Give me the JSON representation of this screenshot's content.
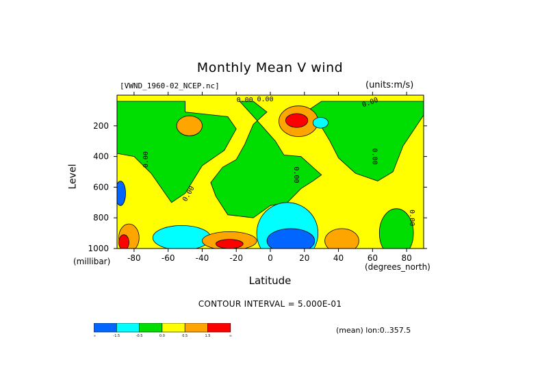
{
  "header": {
    "title": "Monthly Mean V wind",
    "dataset": "[VWND_1960-02_NCEP.nc]",
    "units": "(units:m/s)"
  },
  "footer": {
    "contour_interval": "CONTOUR INTERVAL = 5.000E-01",
    "mean_label": "(mean) lon:0..357.5"
  },
  "chart_data": {
    "type": "heatmap",
    "title": "Monthly Mean V wind",
    "xlabel": "Latitude",
    "x_unit_label": "(degrees_north)",
    "ylabel": "Level",
    "y_unit_label": "(millibar)",
    "xlim": [
      -90,
      90
    ],
    "ylim": [
      1000,
      0
    ],
    "x_ticks": [
      -80,
      -60,
      -40,
      -20,
      0,
      20,
      40,
      60,
      80
    ],
    "x_tick_labels": [
      "-80",
      "-60",
      "-40",
      "-20",
      "0",
      "20",
      "40",
      "60",
      "80"
    ],
    "y_ticks": [
      200,
      400,
      600,
      800,
      1000
    ],
    "y_tick_labels": [
      "200",
      "400",
      "600",
      "800",
      "1000"
    ],
    "contour_labels": [
      "0.00",
      "0.00",
      "0.00",
      "0.00",
      "0.00",
      "0.00",
      "0.00",
      "0.00"
    ],
    "contour_interval": 0.5,
    "colorbar": {
      "colors": [
        "#0066ff",
        "#00ffff",
        "#00dd00",
        "#ffff00",
        "#ffa500",
        "#ff0000"
      ],
      "labels": [
        "-∞",
        "-1.5",
        "-0.5",
        "0.0",
        "0.5",
        "1.5",
        "∞"
      ]
    },
    "regions": [
      {
        "level": "yellow",
        "lat": [
          -90,
          90
        ],
        "p": [
          40,
          1000
        ]
      },
      {
        "level": "green",
        "desc": "southern subtropics",
        "poly": [
          [
            -75,
            40
          ],
          [
            -50,
            40
          ],
          [
            -50,
            110
          ],
          [
            -25,
            140
          ],
          [
            -20,
            220
          ],
          [
            -27,
            360
          ],
          [
            -40,
            460
          ],
          [
            -50,
            640
          ],
          [
            -58,
            700
          ],
          [
            -70,
            510
          ],
          [
            -80,
            400
          ],
          [
            -90,
            380
          ],
          [
            -90,
            40
          ]
        ]
      },
      {
        "level": "green",
        "desc": "central column",
        "poly": [
          [
            -10,
            40
          ],
          [
            -2,
            110
          ],
          [
            -10,
            190
          ],
          [
            -15,
            320
          ],
          [
            -20,
            420
          ],
          [
            -28,
            470
          ],
          [
            -35,
            570
          ],
          [
            -32,
            660
          ],
          [
            -25,
            780
          ],
          [
            -10,
            800
          ],
          [
            0,
            720
          ],
          [
            10,
            700
          ],
          [
            18,
            610
          ],
          [
            25,
            560
          ],
          [
            30,
            520
          ],
          [
            18,
            400
          ],
          [
            8,
            390
          ],
          [
            3,
            300
          ],
          [
            -5,
            200
          ],
          [
            -18,
            40
          ]
        ]
      },
      {
        "level": "green",
        "desc": "northern",
        "poly": [
          [
            30,
            40
          ],
          [
            90,
            40
          ],
          [
            90,
            130
          ],
          [
            78,
            330
          ],
          [
            72,
            500
          ],
          [
            63,
            560
          ],
          [
            50,
            510
          ],
          [
            40,
            410
          ],
          [
            35,
            300
          ],
          [
            28,
            170
          ],
          [
            22,
            100
          ]
        ]
      },
      {
        "level": "orange",
        "lat": [
          5,
          28
        ],
        "p": [
          70,
          270
        ]
      },
      {
        "level": "red",
        "lat": [
          9,
          22
        ],
        "p": [
          120,
          210
        ]
      },
      {
        "level": "orange",
        "lat": [
          -55,
          -40
        ],
        "p": [
          135,
          265
        ]
      },
      {
        "level": "cyan",
        "lat": [
          25,
          34
        ],
        "p": [
          145,
          215
        ]
      }
    ]
  }
}
